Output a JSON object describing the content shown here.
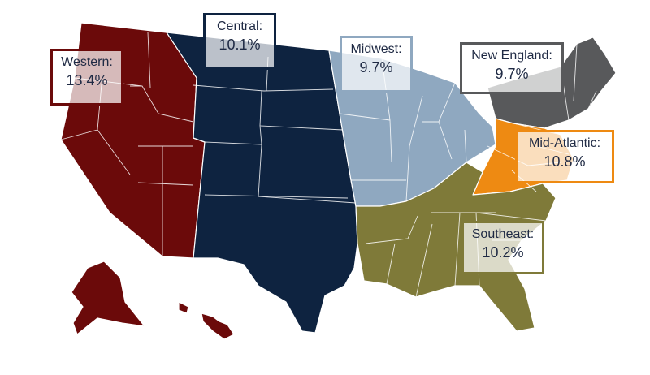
{
  "regions": [
    {
      "key": "western",
      "name": "Western:",
      "value": "13.4%",
      "color": "#6b0a0a"
    },
    {
      "key": "central",
      "name": "Central:",
      "value": "10.1%",
      "color": "#0e2340"
    },
    {
      "key": "midwest",
      "name": "Midwest:",
      "value": "9.7%",
      "color": "#8fa8c0"
    },
    {
      "key": "new-england",
      "name": "New England:",
      "value": "9.7%",
      "color": "#58595b"
    },
    {
      "key": "mid-atlantic",
      "name": "Mid-Atlantic:",
      "value": "10.8%",
      "color": "#ee8a12"
    },
    {
      "key": "southeast",
      "name": "Southeast:",
      "value": "10.2%",
      "color": "#7f7a39"
    }
  ]
}
